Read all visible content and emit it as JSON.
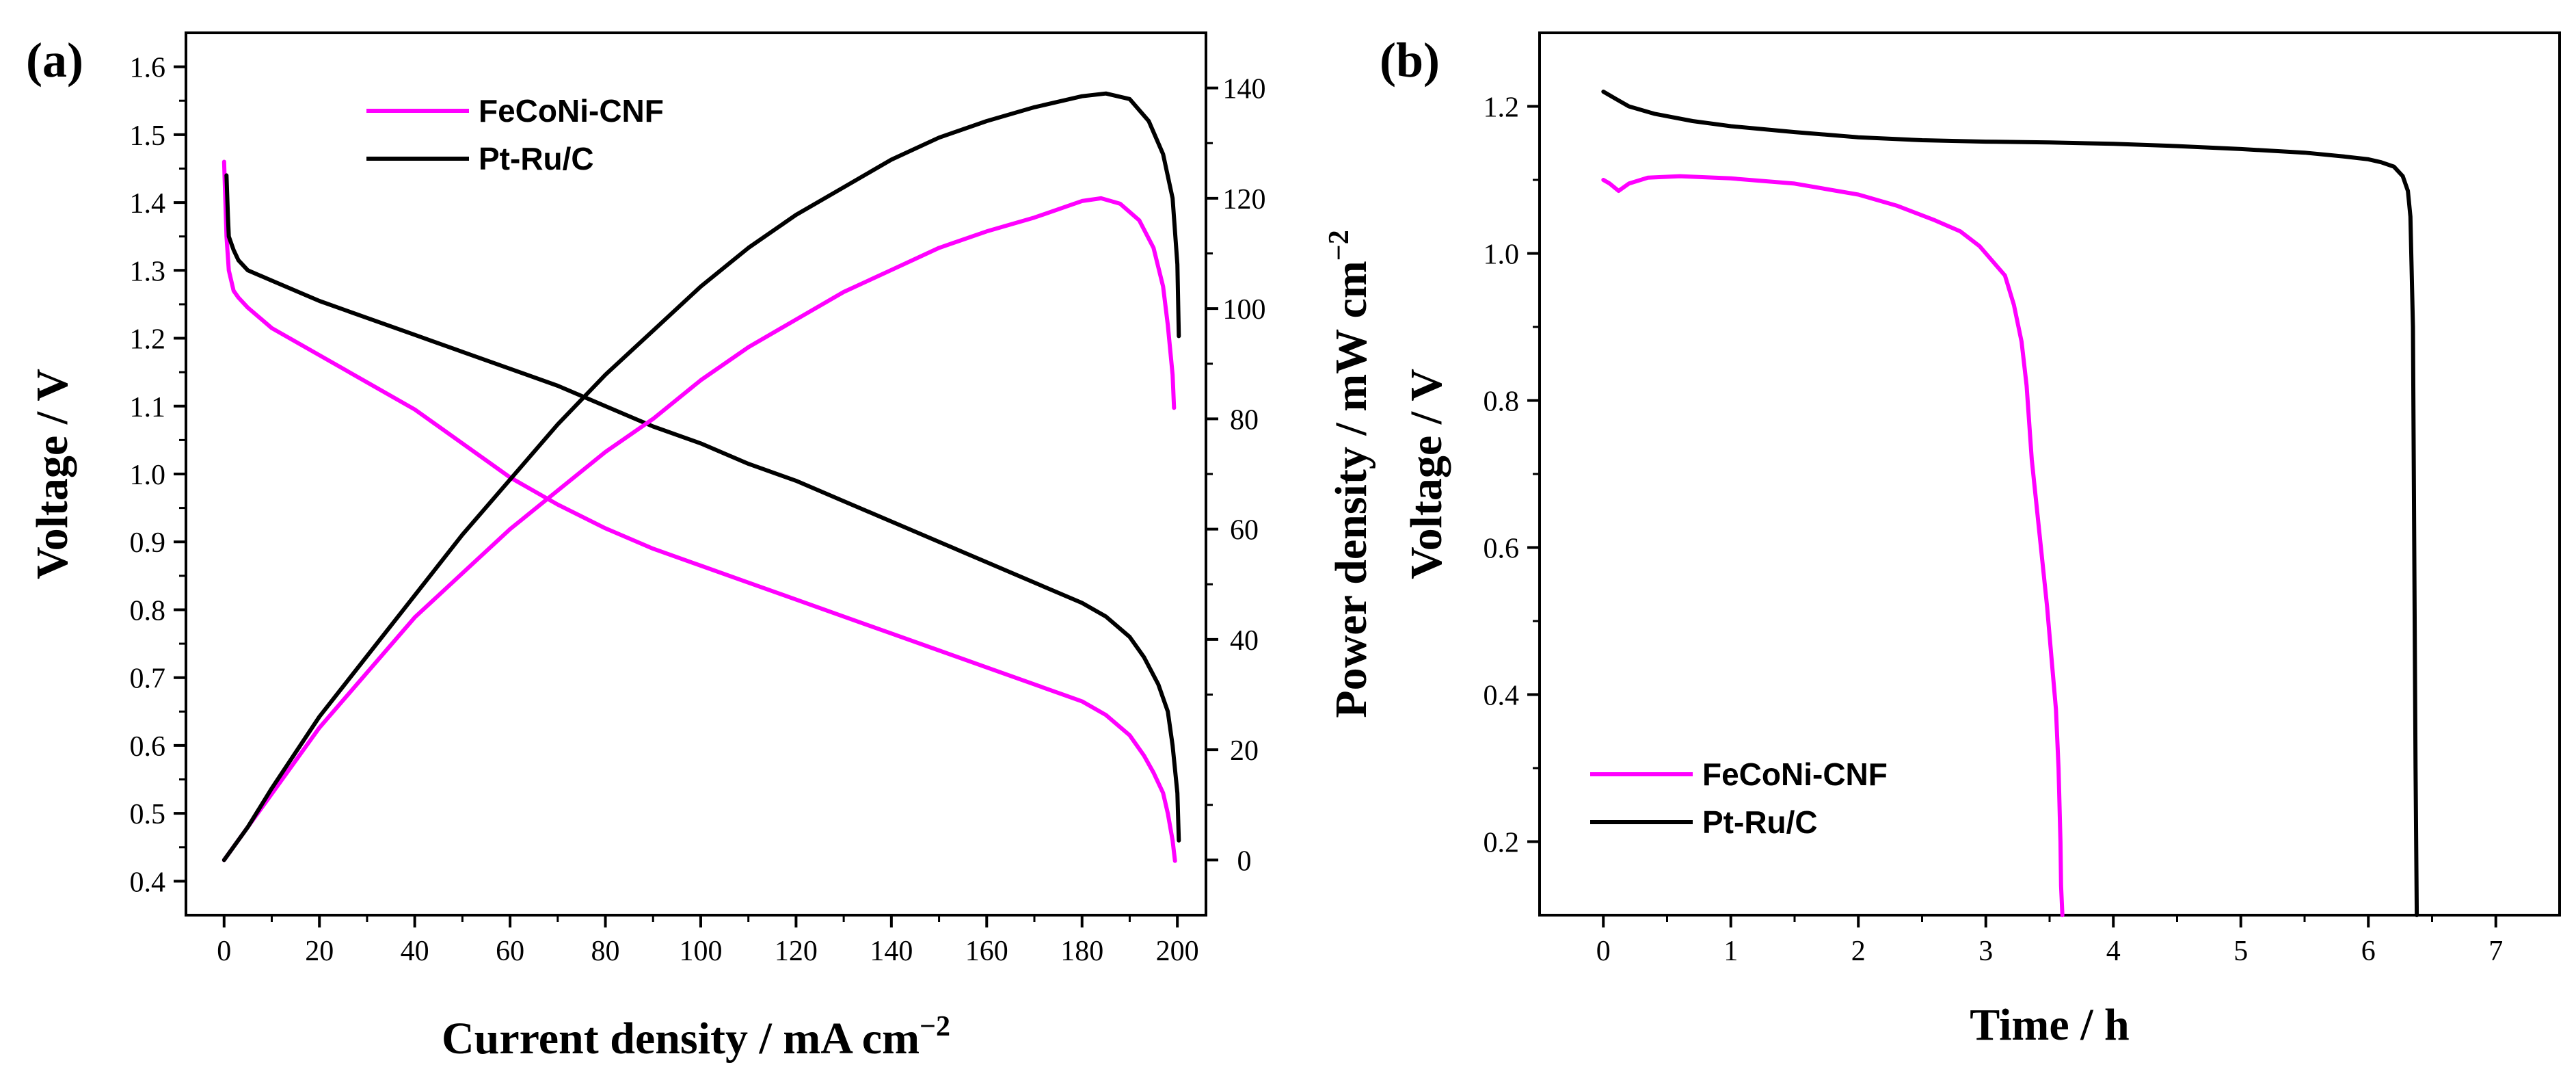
{
  "colors": {
    "fecon": "#ff00ff",
    "ptru": "#000000"
  },
  "chart_data": [
    {
      "panel": "(a)",
      "type": "line",
      "xlabel": "Current density / mA cm",
      "xlabel_sup": "−2",
      "ylabel": "Voltage / V",
      "y2label": "Power density / mW cm",
      "y2label_sup": "−2",
      "xlim": [
        -8,
        206
      ],
      "ylim": [
        0.35,
        1.65
      ],
      "y2lim": [
        -10,
        150
      ],
      "xticks": [
        0,
        20,
        40,
        60,
        80,
        100,
        120,
        140,
        160,
        180,
        200
      ],
      "yticks": [
        0.4,
        0.5,
        0.6,
        0.7,
        0.8,
        0.9,
        1.0,
        1.1,
        1.2,
        1.3,
        1.4,
        1.5,
        1.6
      ],
      "y2ticks": [
        0,
        20,
        40,
        60,
        80,
        100,
        120,
        140
      ],
      "legend_position": "top-left",
      "series": [
        {
          "name": "FeCoNi-CNF",
          "axis": "left",
          "color": "#ff00ff",
          "x": [
            0,
            0.5,
            1,
            2,
            3,
            5,
            10,
            20,
            30,
            40,
            50,
            60,
            70,
            80,
            90,
            100,
            110,
            120,
            130,
            140,
            150,
            160,
            170,
            180,
            185,
            190,
            193,
            195,
            197,
            198,
            199,
            199.5
          ],
          "y": [
            1.46,
            1.35,
            1.3,
            1.27,
            1.26,
            1.245,
            1.215,
            1.175,
            1.135,
            1.095,
            1.045,
            0.995,
            0.955,
            0.92,
            0.89,
            0.865,
            0.84,
            0.815,
            0.79,
            0.765,
            0.74,
            0.715,
            0.69,
            0.665,
            0.645,
            0.615,
            0.585,
            0.56,
            0.53,
            0.5,
            0.46,
            0.43
          ]
        },
        {
          "name": "Pt-Ru/C",
          "axis": "left",
          "color": "#000000",
          "x": [
            0.5,
            0.8,
            1,
            2,
            3,
            5,
            10,
            20,
            30,
            40,
            50,
            60,
            70,
            80,
            90,
            100,
            110,
            120,
            130,
            140,
            150,
            160,
            170,
            180,
            185,
            190,
            193,
            196,
            198,
            199,
            200,
            200.3
          ],
          "y": [
            1.44,
            1.38,
            1.35,
            1.33,
            1.315,
            1.3,
            1.285,
            1.255,
            1.23,
            1.205,
            1.18,
            1.155,
            1.13,
            1.1,
            1.07,
            1.045,
            1.015,
            0.99,
            0.96,
            0.93,
            0.9,
            0.87,
            0.84,
            0.81,
            0.79,
            0.76,
            0.73,
            0.69,
            0.65,
            0.6,
            0.53,
            0.46
          ]
        },
        {
          "name": "FeCoNi-CNF",
          "axis": "right",
          "color": "#ff00ff",
          "x": [
            0,
            5,
            10,
            20,
            30,
            40,
            50,
            60,
            70,
            80,
            90,
            100,
            110,
            120,
            130,
            140,
            150,
            160,
            170,
            180,
            184,
            188,
            192,
            195,
            197,
            198,
            199,
            199.3
          ],
          "y": [
            0,
            6,
            12,
            24,
            34,
            44,
            52,
            60,
            67,
            74,
            80,
            87,
            93,
            98,
            103,
            107,
            111,
            114,
            116.5,
            119.5,
            120,
            119,
            116,
            111,
            104,
            97,
            88,
            82
          ]
        },
        {
          "name": "Pt-Ru/C",
          "axis": "right",
          "color": "#000000",
          "x": [
            0,
            5,
            10,
            20,
            30,
            40,
            50,
            60,
            70,
            80,
            90,
            100,
            110,
            120,
            130,
            140,
            150,
            160,
            170,
            180,
            185,
            190,
            194,
            197,
            199,
            200,
            200.3
          ],
          "y": [
            0,
            6,
            13,
            26,
            37,
            48,
            59,
            69,
            79,
            88,
            96,
            104,
            111,
            117,
            122,
            127,
            131,
            134,
            136.5,
            138.5,
            139,
            138,
            134,
            128,
            120,
            108,
            95
          ]
        }
      ]
    },
    {
      "panel": "(b)",
      "type": "line",
      "xlabel": "Time / h",
      "ylabel": "Voltage / V",
      "xlim": [
        -0.5,
        7.5
      ],
      "ylim": [
        0.1,
        1.3
      ],
      "xticks": [
        0,
        1,
        2,
        3,
        4,
        5,
        6,
        7
      ],
      "yticks": [
        0.2,
        0.4,
        0.6,
        0.8,
        1.0,
        1.2
      ],
      "legend_position": "bottom-left",
      "series": [
        {
          "name": "FeCoNi-CNF",
          "color": "#ff00ff",
          "x": [
            0,
            0.05,
            0.12,
            0.2,
            0.35,
            0.6,
            1.0,
            1.5,
            2.0,
            2.3,
            2.6,
            2.8,
            2.95,
            3.05,
            3.15,
            3.22,
            3.28,
            3.32,
            3.36,
            3.42,
            3.48,
            3.52,
            3.55,
            3.57,
            3.585,
            3.59,
            3.6
          ],
          "y": [
            1.1,
            1.095,
            1.085,
            1.095,
            1.103,
            1.105,
            1.102,
            1.095,
            1.08,
            1.065,
            1.045,
            1.03,
            1.01,
            0.99,
            0.97,
            0.93,
            0.88,
            0.82,
            0.72,
            0.62,
            0.52,
            0.44,
            0.38,
            0.3,
            0.2,
            0.14,
            0.1
          ]
        },
        {
          "name": "Pt-Ru/C",
          "color": "#000000",
          "x": [
            0,
            0.1,
            0.2,
            0.4,
            0.7,
            1.0,
            1.5,
            2.0,
            2.5,
            3.0,
            3.5,
            4.0,
            4.5,
            5.0,
            5.5,
            5.8,
            6.0,
            6.1,
            6.2,
            6.27,
            6.31,
            6.33,
            6.35,
            6.36,
            6.37,
            6.38
          ],
          "y": [
            1.22,
            1.21,
            1.2,
            1.19,
            1.18,
            1.173,
            1.165,
            1.158,
            1.154,
            1.152,
            1.151,
            1.149,
            1.146,
            1.142,
            1.137,
            1.132,
            1.128,
            1.124,
            1.118,
            1.105,
            1.085,
            1.05,
            0.9,
            0.6,
            0.3,
            0.1
          ]
        }
      ]
    }
  ]
}
